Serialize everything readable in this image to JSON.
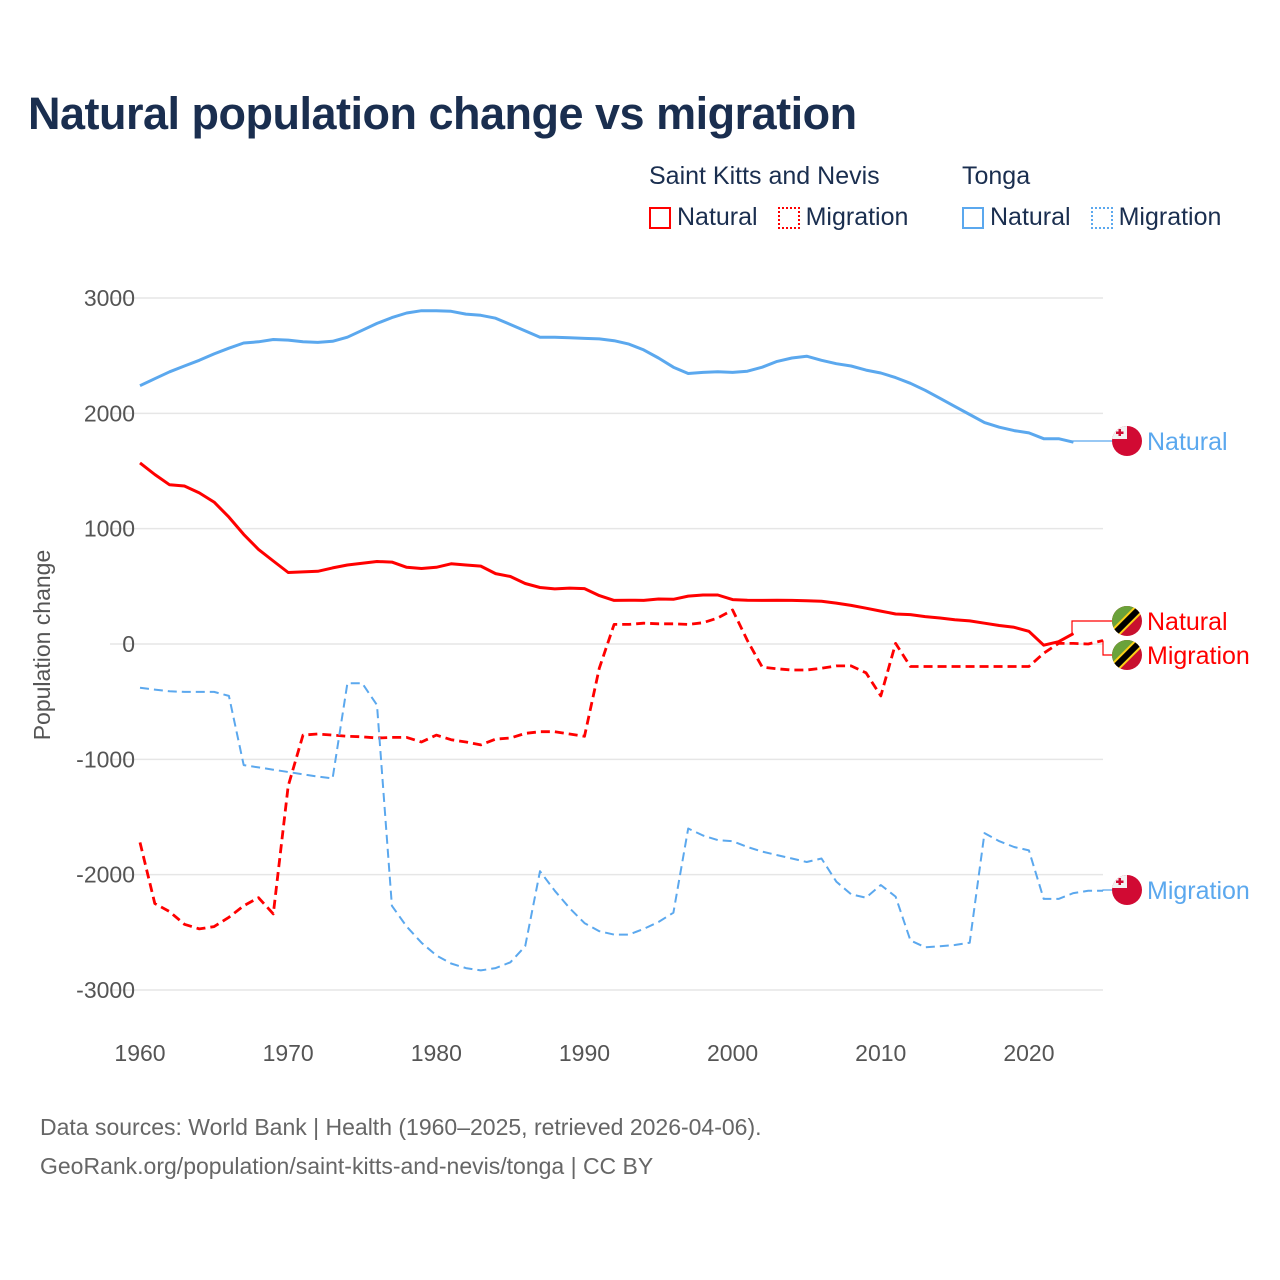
{
  "title": "Natural population change vs migration",
  "legend": {
    "groups": [
      {
        "country": "Saint Kitts and Nevis",
        "color": "#ff0000",
        "items": [
          "Natural",
          "Migration"
        ]
      },
      {
        "country": "Tonga",
        "color": "#5ba8ee",
        "items": [
          "Natural",
          "Migration"
        ]
      }
    ]
  },
  "footer": {
    "line1": "Data sources: World Bank | Health (1960–2025, retrieved 2026-04-06).",
    "line2": "GeoRank.org/population/saint-kitts-and-nevis/tonga | CC BY"
  },
  "chart_data": {
    "type": "line",
    "title": "Natural population change vs migration",
    "xlabel": "",
    "ylabel": "Population change",
    "xlim": [
      1960,
      2025
    ],
    "ylim": [
      -3000,
      3000
    ],
    "yticks": [
      3000,
      2000,
      1000,
      0,
      -1000,
      -2000,
      -3000
    ],
    "ytick_labels": [
      "3000",
      "2000",
      "1000",
      "0",
      "-1000",
      "-2000",
      "-3000"
    ],
    "xticks": [
      1960,
      1970,
      1980,
      1990,
      2000,
      2010,
      2020
    ],
    "xtick_labels": [
      "1960",
      "1970",
      "1980",
      "1990",
      "2000",
      "2010",
      "2020"
    ],
    "grid": true,
    "x_start": 1960,
    "series": [
      {
        "name": "Tonga Natural",
        "label": "Natural",
        "color": "#5ba8ee",
        "style": "solid",
        "values": [
          2240,
          2300,
          2360,
          2410,
          2460,
          2515,
          2565,
          2610,
          2620,
          2640,
          2635,
          2620,
          2615,
          2625,
          2660,
          2720,
          2780,
          2830,
          2870,
          2890,
          2890,
          2885,
          2860,
          2850,
          2825,
          2770,
          2715,
          2660,
          2660,
          2655,
          2650,
          2645,
          2630,
          2600,
          2550,
          2480,
          2400,
          2345,
          2355,
          2360,
          2355,
          2365,
          2400,
          2450,
          2480,
          2495,
          2460,
          2430,
          2410,
          2375,
          2350,
          2310,
          2260,
          2200,
          2130,
          2060,
          1990,
          1920,
          1880,
          1850,
          1830,
          1780,
          1780,
          1750,
          null,
          null
        ]
      },
      {
        "name": "Saint Kitts and Nevis Natural",
        "label": "Natural",
        "color": "#ff0000",
        "style": "solid",
        "values": [
          1570,
          1470,
          1380,
          1370,
          1310,
          1230,
          1100,
          950,
          820,
          720,
          620,
          625,
          630,
          660,
          685,
          700,
          715,
          710,
          665,
          655,
          665,
          695,
          685,
          675,
          610,
          585,
          525,
          490,
          478,
          485,
          480,
          420,
          378,
          380,
          378,
          390,
          388,
          415,
          425,
          425,
          385,
          380,
          378,
          380,
          378,
          375,
          370,
          355,
          335,
          310,
          285,
          260,
          255,
          238,
          225,
          210,
          200,
          180,
          160,
          145,
          110,
          -10,
          20,
          90,
          null,
          null
        ]
      },
      {
        "name": "Saint Kitts and Nevis Migration",
        "label": "Migration",
        "color": "#ff0000",
        "style": "dashed",
        "values": [
          -1720,
          -2250,
          -2320,
          -2430,
          -2470,
          -2450,
          -2370,
          -2270,
          -2200,
          -2340,
          -1230,
          -790,
          -780,
          -790,
          -800,
          -805,
          -815,
          -810,
          -810,
          -850,
          -790,
          -830,
          -850,
          -875,
          -825,
          -815,
          -775,
          -760,
          -760,
          -780,
          -800,
          -210,
          170,
          170,
          180,
          175,
          175,
          170,
          185,
          225,
          295,
          30,
          -200,
          -215,
          -225,
          -225,
          -210,
          -190,
          -190,
          -250,
          -450,
          5,
          -195,
          -195,
          -195,
          -195,
          -195,
          -195,
          -195,
          -195,
          -195,
          -80,
          5,
          5,
          0,
          30
        ]
      },
      {
        "name": "Tonga Migration",
        "label": "Migration",
        "color": "#5ba8ee",
        "style": "dashed-thin",
        "values": [
          -380,
          -395,
          -410,
          -415,
          -415,
          -415,
          -450,
          -1050,
          -1070,
          -1090,
          -1110,
          -1130,
          -1150,
          -1165,
          -340,
          -340,
          -530,
          -2270,
          -2450,
          -2590,
          -2700,
          -2770,
          -2810,
          -2830,
          -2810,
          -2760,
          -2620,
          -1970,
          -2140,
          -2290,
          -2420,
          -2490,
          -2520,
          -2520,
          -2470,
          -2410,
          -2330,
          -1600,
          -1660,
          -1700,
          -1710,
          -1760,
          -1800,
          -1830,
          -1860,
          -1890,
          -1860,
          -2060,
          -2170,
          -2200,
          -2090,
          -2190,
          -2570,
          -2630,
          -2620,
          -2610,
          -2590,
          -1640,
          -1710,
          -1760,
          -1790,
          -2210,
          -2210,
          -2160,
          -2140,
          -2140
        ]
      }
    ],
    "end_labels": [
      {
        "series": "Tonga Natural",
        "text": "Natural",
        "flag": "tonga-flag"
      },
      {
        "series": "Saint Kitts and Nevis Natural",
        "text": "Natural",
        "flag": "saint-kitts-and-nevis-flag"
      },
      {
        "series": "Saint Kitts and Nevis Migration",
        "text": "Migration",
        "flag": "saint-kitts-and-nevis-flag"
      },
      {
        "series": "Tonga Migration",
        "text": "Migration",
        "flag": "tonga-flag"
      }
    ]
  }
}
